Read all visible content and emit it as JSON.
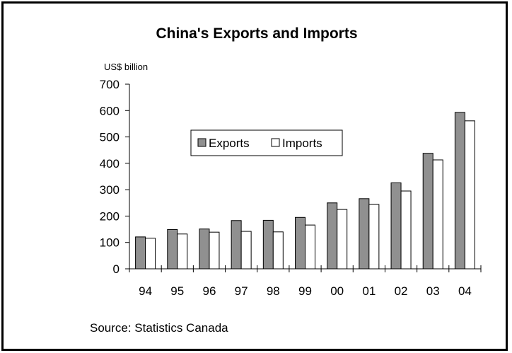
{
  "chart_data": {
    "type": "bar",
    "title": "China's Exports and Imports",
    "unit_label": "US$ billion",
    "categories": [
      "94",
      "95",
      "96",
      "97",
      "98",
      "99",
      "00",
      "01",
      "02",
      "03",
      "04"
    ],
    "series": [
      {
        "name": "Exports",
        "values": [
          121,
          149,
          151,
          183,
          184,
          195,
          250,
          266,
          326,
          438,
          593
        ],
        "color": "#909090"
      },
      {
        "name": "Imports",
        "values": [
          116,
          132,
          139,
          142,
          140,
          166,
          225,
          244,
          295,
          413,
          561
        ],
        "color": "#ffffff"
      }
    ],
    "ylim": [
      0,
      700
    ],
    "yticks": [
      "0",
      "100",
      "200",
      "300",
      "400",
      "500",
      "600",
      "700"
    ],
    "legend_position": "center-left",
    "grid": false
  },
  "source_text": "Source: Statistics Canada"
}
